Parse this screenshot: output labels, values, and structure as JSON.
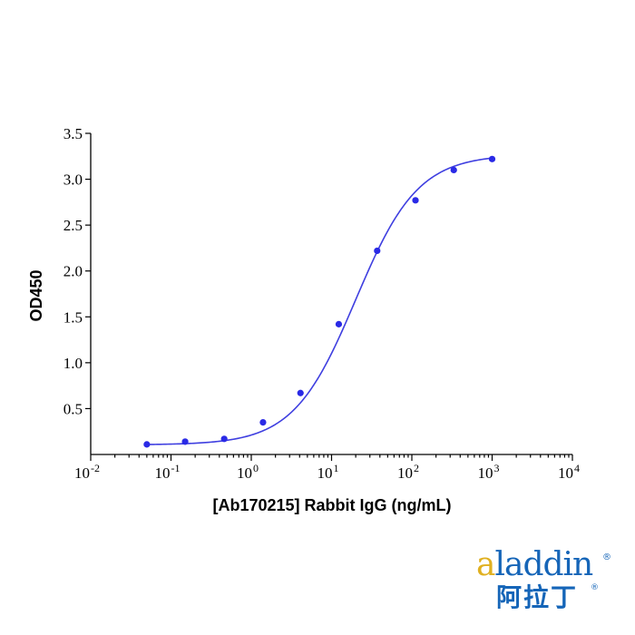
{
  "chart_data": {
    "type": "scatter",
    "title": "",
    "xlabel": "[Ab170215] Rabbit IgG (ng/mL)",
    "ylabel": "OD450",
    "x_scale": "log",
    "xlim": [
      0.01,
      10000
    ],
    "ylim": [
      0,
      3.5
    ],
    "x_ticks": [
      {
        "value": 0.01,
        "base": "10",
        "exp": "-2"
      },
      {
        "value": 0.1,
        "base": "10",
        "exp": "-1"
      },
      {
        "value": 1,
        "base": "10",
        "exp": "0"
      },
      {
        "value": 10,
        "base": "10",
        "exp": "1"
      },
      {
        "value": 100,
        "base": "10",
        "exp": "2"
      },
      {
        "value": 1000,
        "base": "10",
        "exp": "3"
      },
      {
        "value": 10000,
        "base": "10",
        "exp": "4"
      }
    ],
    "y_ticks": [
      {
        "value": 0.5,
        "label": "0.5"
      },
      {
        "value": 1.0,
        "label": "1.0"
      },
      {
        "value": 1.5,
        "label": "1.5"
      },
      {
        "value": 2.0,
        "label": "2.0"
      },
      {
        "value": 2.5,
        "label": "2.5"
      },
      {
        "value": 3.0,
        "label": "3.0"
      },
      {
        "value": 3.5,
        "label": "3.5"
      }
    ],
    "grid": false,
    "series": [
      {
        "x": [
          0.05,
          0.15,
          0.46,
          1.4,
          4.1,
          12.3,
          37,
          111,
          333,
          1000
        ],
        "y": [
          0.11,
          0.14,
          0.17,
          0.35,
          0.67,
          1.42,
          2.22,
          2.77,
          3.1,
          3.22
        ],
        "color": "#2a2ae6",
        "fit": "4PL sigmoid curve"
      }
    ]
  },
  "logo": {
    "text_first": "a",
    "text_rest": "laddin",
    "reg_mark": "®",
    "chinese": "阿拉丁",
    "chinese_reg": "®",
    "brand_color": "#1565b8",
    "accent_color": "#e0b020"
  }
}
